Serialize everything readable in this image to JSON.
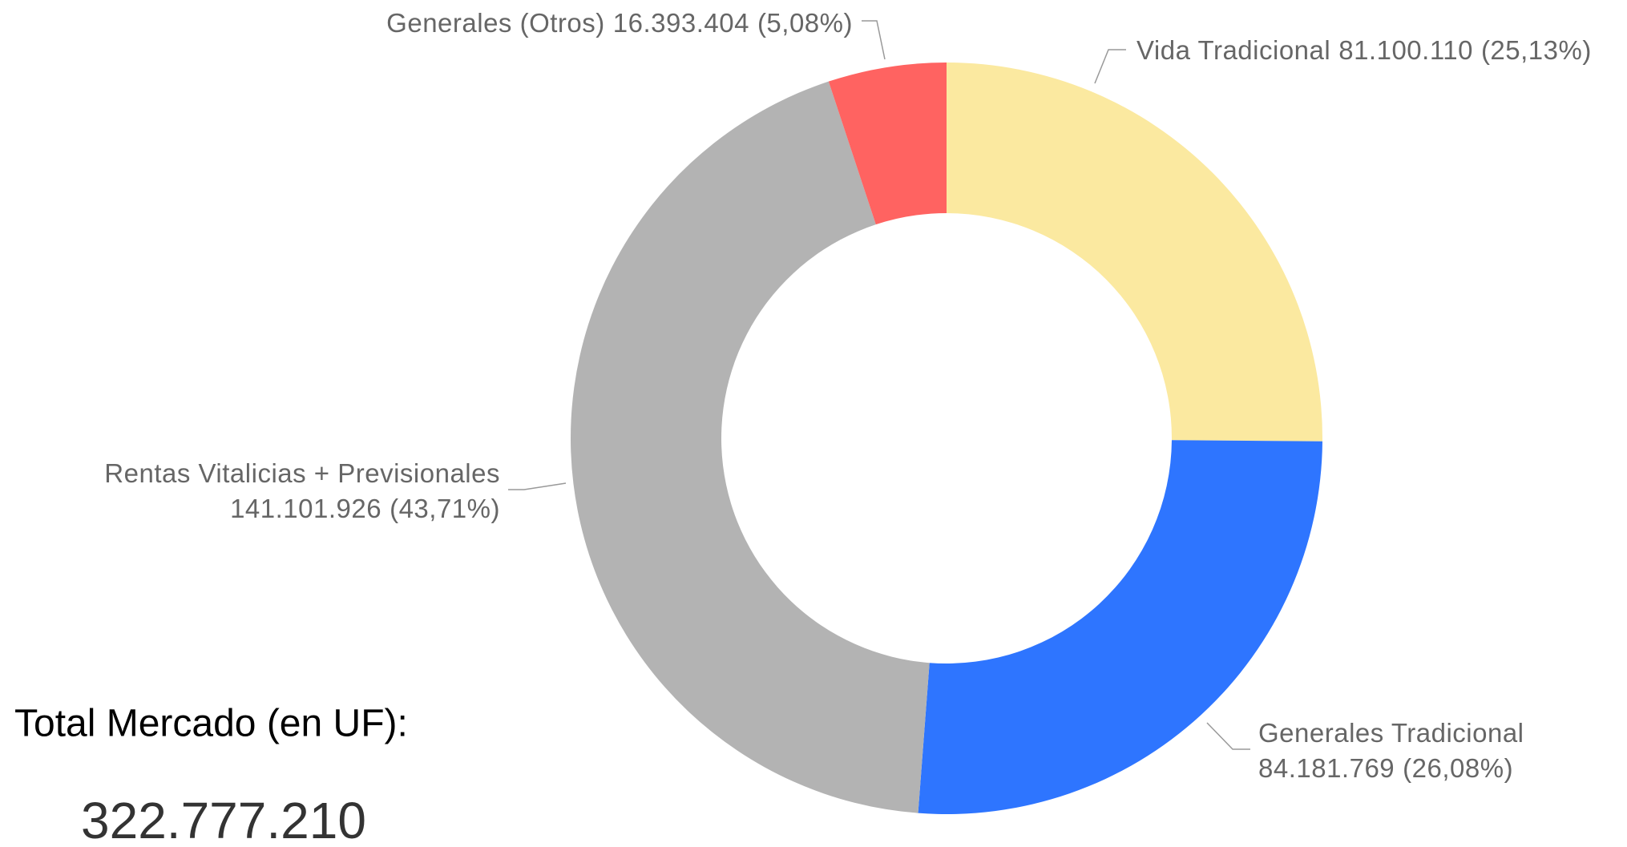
{
  "chart_data": {
    "type": "donut",
    "categories": [
      "Vida Tradicional",
      "Generales Tradicional",
      "Rentas Vitalicias + Previsionales",
      "Generales (Otros)"
    ],
    "values": [
      81100110,
      84181769,
      141101926,
      16393404
    ],
    "value_labels": [
      "81.100.110",
      "84.181.769",
      "141.101.926",
      "16.393.404"
    ],
    "percents": [
      25.13,
      26.08,
      43.71,
      5.08
    ],
    "percent_labels": [
      "(25,13%)",
      "(26,08%)",
      "(43,71%)",
      "(5,08%)"
    ],
    "colors": [
      "#fbe9a0",
      "#2e75ff",
      "#b3b3b3",
      "#ff6361"
    ],
    "total_title": "Total Mercado (en UF):",
    "total_label": "322.777.210"
  }
}
